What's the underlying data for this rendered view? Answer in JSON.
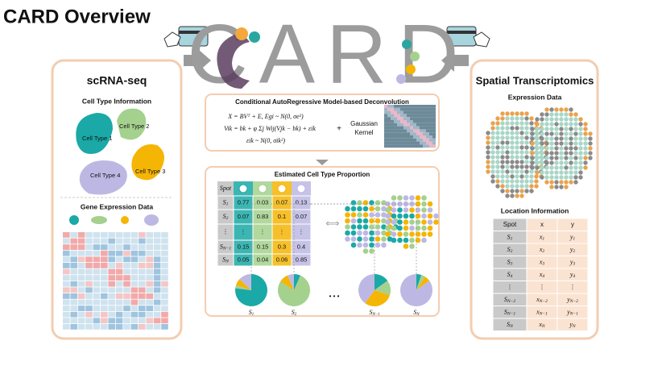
{
  "header": {
    "title": "CARD Overview",
    "logo": "CARD"
  },
  "scrna": {
    "title": "scRNA-seq",
    "cell_type_info": "Cell Type Information",
    "cell_types": [
      "Cell Type 1",
      "Cell Type 2",
      "Cell Type 3",
      "Cell Type 4"
    ],
    "gene_expression": "Gene Expression Data"
  },
  "model": {
    "title": "Conditional AutoRegressive Model-based Deconvolution",
    "equations": [
      "X = BVᵀ + E, Egi ~ N(0, σe²)",
      "Vik = bk + φ Σj Wij(Vjk − bk) + εik",
      "εik ~ N(0, σik²)"
    ],
    "plus": "+",
    "kernel": [
      "Gaussian",
      "Kernel"
    ]
  },
  "proportion": {
    "title": "Estimated Cell Type Proportion",
    "spot_header": "Spot",
    "rows": [
      {
        "spot": {
          "base": "S",
          "sub": "1"
        },
        "values": [
          0.77,
          0.03,
          0.07,
          0.13
        ]
      },
      {
        "spot": {
          "base": "S",
          "sub": "2"
        },
        "values": [
          0.07,
          0.83,
          0.1,
          0.07
        ]
      },
      {
        "spot": "⋮",
        "values": [
          "⋮",
          "⋮",
          "⋮",
          "⋮"
        ]
      },
      {
        "spot": {
          "base": "S",
          "sub": "N−1"
        },
        "values": [
          0.15,
          0.15,
          0.3,
          0.4
        ]
      },
      {
        "spot": {
          "base": "S",
          "sub": "N"
        },
        "values": [
          0.05,
          0.04,
          0.06,
          0.85
        ]
      }
    ],
    "pie_ellipsis": "• • •"
  },
  "spatial": {
    "title": "Spatial Transcriptomics",
    "expression": "Expression Data",
    "location": "Location Information",
    "table": {
      "header": [
        "Spot",
        "x",
        "y"
      ],
      "rows": [
        [
          {
            "base": "S",
            "sub": "1"
          },
          {
            "base": "x",
            "sub": "1"
          },
          {
            "base": "y",
            "sub": "1"
          }
        ],
        [
          {
            "base": "S",
            "sub": "2"
          },
          {
            "base": "x",
            "sub": "2"
          },
          {
            "base": "y",
            "sub": "2"
          }
        ],
        [
          {
            "base": "S",
            "sub": "3"
          },
          {
            "base": "x",
            "sub": "3"
          },
          {
            "base": "y",
            "sub": "3"
          }
        ],
        [
          {
            "base": "S",
            "sub": "4"
          },
          {
            "base": "x",
            "sub": "4"
          },
          {
            "base": "y",
            "sub": "4"
          }
        ],
        [
          "⋮",
          "⋮",
          "⋮"
        ],
        [
          {
            "base": "S",
            "sub": "N−2"
          },
          {
            "base": "x",
            "sub": "N−2"
          },
          {
            "base": "y",
            "sub": "N−2"
          }
        ],
        [
          {
            "base": "S",
            "sub": "N−1"
          },
          {
            "base": "x",
            "sub": "N−1"
          },
          {
            "base": "y",
            "sub": "N−1"
          }
        ],
        [
          {
            "base": "S",
            "sub": "N"
          },
          {
            "base": "x",
            "sub": "N"
          },
          {
            "base": "y",
            "sub": "N"
          }
        ]
      ]
    }
  }
}
